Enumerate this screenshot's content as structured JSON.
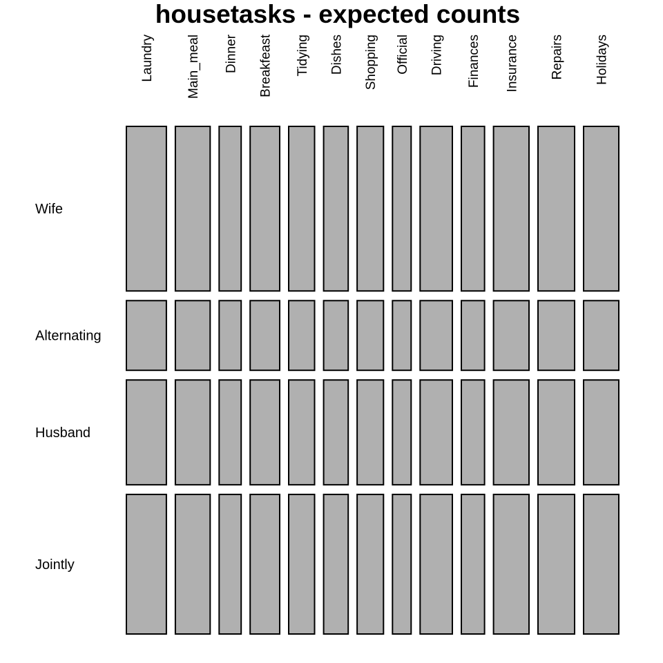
{
  "chart_data": {
    "type": "mosaic",
    "title": "housetasks - expected counts",
    "columns": [
      "Laundry",
      "Main_meal",
      "Dinner",
      "Breakfeast",
      "Tidying",
      "Dishes",
      "Shopping",
      "Official",
      "Driving",
      "Finances",
      "Insurance",
      "Repairs",
      "Holidays"
    ],
    "rows": [
      "Wife",
      "Alternating",
      "Husband",
      "Jointly"
    ],
    "column_totals": [
      176,
      153,
      97,
      130,
      114,
      108,
      116,
      82,
      142,
      102,
      156,
      161,
      155
    ],
    "row_totals": [
      600,
      254,
      382,
      509
    ],
    "fill_color": "#b0b0b0",
    "border_color": "#000000"
  }
}
